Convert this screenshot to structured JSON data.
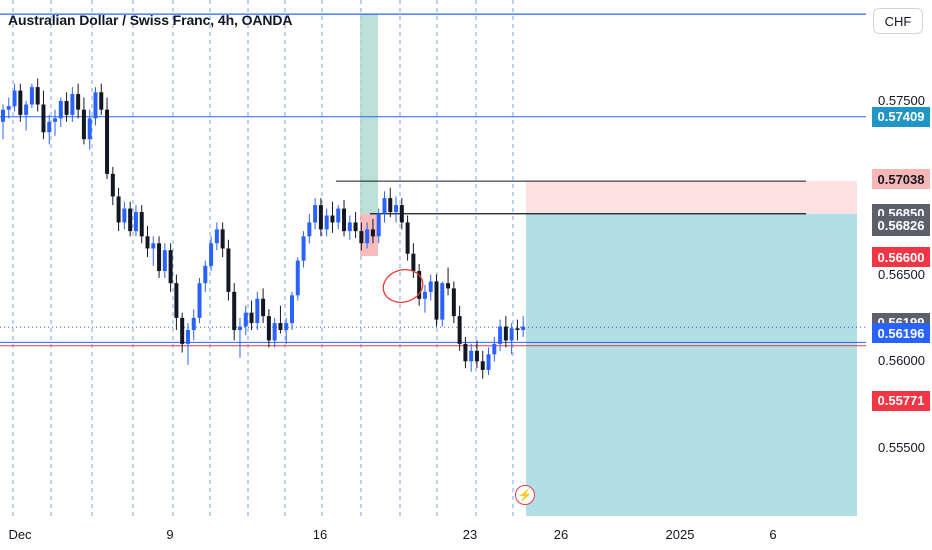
{
  "window": {
    "title": "Australian Dollar / Swiss Franc, 4h, OANDA",
    "currency_button": "CHF"
  },
  "colors": {
    "up_candle": "#2962ff",
    "down_candle": "#131722",
    "target_zone": "#b2dfe3",
    "stop_zone": "#fde0e0",
    "blue_line": "#2962ff",
    "red_line": "#e53935",
    "green_band": "#a5d6c8"
  },
  "price_axis": {
    "ticks": [
      "0.57500",
      "0.56500",
      "0.56000",
      "0.55500"
    ],
    "labels": [
      {
        "text": "0.57409",
        "price": 0.57409,
        "bg": "#2196c4",
        "fg": "#ffffff"
      },
      {
        "text": "0.57038",
        "price": 0.57038,
        "bg": "#f8b7b7",
        "fg": "#131722"
      },
      {
        "text": "0.56850",
        "price": 0.5685,
        "bg": "#5d606b",
        "fg": "#ffffff"
      },
      {
        "text": "0.56826",
        "price": 0.56826,
        "bg": "#5d606b",
        "fg": "#ffffff"
      },
      {
        "text": "0.56600",
        "price": 0.566,
        "bg": "#f23645",
        "fg": "#ffffff"
      },
      {
        "text": "0.56199",
        "price": 0.56199,
        "bg": "#5d606b",
        "fg": "#ffffff"
      },
      {
        "text": "0.56196",
        "price": 0.56196,
        "bg": "#2962ff",
        "fg": "#ffffff"
      },
      {
        "text": "0.55771",
        "price": 0.55771,
        "bg": "#f23645",
        "fg": "#ffffff"
      }
    ]
  },
  "time_axis": {
    "labels": [
      "Dec",
      "9",
      "16",
      "23",
      "26",
      "2025",
      "6"
    ]
  },
  "chart_data": {
    "type": "candlestick",
    "symbol": "AUDCHF",
    "timeframe": "4h",
    "ylim": [
      0.5505,
      0.58
    ],
    "horizontal_lines": [
      {
        "price": 0.58,
        "color": "blue"
      },
      {
        "price": 0.57409,
        "color": "blue"
      },
      {
        "price": 0.56109,
        "color": "blue"
      },
      {
        "price": 0.56089,
        "color": "red"
      }
    ],
    "position": {
      "entry": 0.5685,
      "stop": 0.57038,
      "target": 0.551
    },
    "candles": [
      [
        0.5738,
        0.5748,
        0.5728,
        0.5745
      ],
      [
        0.5745,
        0.5752,
        0.574,
        0.5747
      ],
      [
        0.5747,
        0.576,
        0.5744,
        0.5756
      ],
      [
        0.5756,
        0.576,
        0.5738,
        0.5742
      ],
      [
        0.5742,
        0.575,
        0.5733,
        0.5748
      ],
      [
        0.5748,
        0.576,
        0.5746,
        0.5758
      ],
      [
        0.5758,
        0.5763,
        0.5744,
        0.5748
      ],
      [
        0.5748,
        0.5756,
        0.5728,
        0.5732
      ],
      [
        0.5732,
        0.5742,
        0.5725,
        0.5738
      ],
      [
        0.5738,
        0.5745,
        0.573,
        0.574
      ],
      [
        0.574,
        0.5752,
        0.5735,
        0.575
      ],
      [
        0.575,
        0.5755,
        0.5738,
        0.5742
      ],
      [
        0.5742,
        0.5758,
        0.5738,
        0.5754
      ],
      [
        0.5754,
        0.576,
        0.574,
        0.5745
      ],
      [
        0.5745,
        0.5752,
        0.5725,
        0.5728
      ],
      [
        0.5728,
        0.5745,
        0.5722,
        0.574
      ],
      [
        0.574,
        0.5758,
        0.5736,
        0.5755
      ],
      [
        0.5755,
        0.576,
        0.5742,
        0.5745
      ],
      [
        0.5745,
        0.5752,
        0.5705,
        0.5708
      ],
      [
        0.5708,
        0.5712,
        0.569,
        0.5695
      ],
      [
        0.5695,
        0.57,
        0.5675,
        0.568
      ],
      [
        0.568,
        0.5692,
        0.5676,
        0.5688
      ],
      [
        0.5688,
        0.5692,
        0.5672,
        0.5675
      ],
      [
        0.5675,
        0.569,
        0.5672,
        0.5686
      ],
      [
        0.5686,
        0.569,
        0.5668,
        0.5672
      ],
      [
        0.5672,
        0.5678,
        0.566,
        0.5665
      ],
      [
        0.5665,
        0.5672,
        0.5655,
        0.5668
      ],
      [
        0.5668,
        0.5672,
        0.5648,
        0.5652
      ],
      [
        0.5652,
        0.5668,
        0.5648,
        0.5664
      ],
      [
        0.5664,
        0.5668,
        0.564,
        0.5645
      ],
      [
        0.5645,
        0.565,
        0.5618,
        0.5625
      ],
      [
        0.5625,
        0.5628,
        0.5605,
        0.561
      ],
      [
        0.561,
        0.5622,
        0.5598,
        0.5618
      ],
      [
        0.5618,
        0.563,
        0.5612,
        0.5625
      ],
      [
        0.5625,
        0.5648,
        0.5622,
        0.5645
      ],
      [
        0.5645,
        0.5658,
        0.564,
        0.5655
      ],
      [
        0.5655,
        0.5672,
        0.5652,
        0.5668
      ],
      [
        0.5668,
        0.568,
        0.5664,
        0.5676
      ],
      [
        0.5676,
        0.568,
        0.566,
        0.5665
      ],
      [
        0.5665,
        0.567,
        0.5635,
        0.564
      ],
      [
        0.564,
        0.5645,
        0.5612,
        0.5618
      ],
      [
        0.5618,
        0.5625,
        0.5602,
        0.562
      ],
      [
        0.562,
        0.5632,
        0.5615,
        0.5628
      ],
      [
        0.5628,
        0.5635,
        0.5618,
        0.5622
      ],
      [
        0.5622,
        0.564,
        0.5618,
        0.5636
      ],
      [
        0.5636,
        0.5642,
        0.5622,
        0.5626
      ],
      [
        0.5626,
        0.563,
        0.5608,
        0.5612
      ],
      [
        0.5612,
        0.5625,
        0.5608,
        0.5622
      ],
      [
        0.5622,
        0.5632,
        0.5616,
        0.5618
      ],
      [
        0.5618,
        0.5625,
        0.561,
        0.5622
      ],
      [
        0.5622,
        0.564,
        0.5618,
        0.5638
      ],
      [
        0.5638,
        0.566,
        0.5635,
        0.5658
      ],
      [
        0.5658,
        0.5675,
        0.5654,
        0.5672
      ],
      [
        0.5672,
        0.5685,
        0.5668,
        0.568
      ],
      [
        0.568,
        0.5694,
        0.5676,
        0.569
      ],
      [
        0.569,
        0.5694,
        0.5672,
        0.5676
      ],
      [
        0.5676,
        0.5688,
        0.5672,
        0.5684
      ],
      [
        0.5684,
        0.5692,
        0.5674,
        0.568
      ],
      [
        0.568,
        0.569,
        0.5676,
        0.5688
      ],
      [
        0.5688,
        0.5693,
        0.5672,
        0.5675
      ],
      [
        0.5675,
        0.5684,
        0.567,
        0.568
      ],
      [
        0.568,
        0.5686,
        0.5671,
        0.5675
      ],
      [
        0.5675,
        0.568,
        0.5664,
        0.5668
      ],
      [
        0.5668,
        0.568,
        0.5665,
        0.5676
      ],
      [
        0.5676,
        0.5682,
        0.5668,
        0.5672
      ],
      [
        0.5672,
        0.5688,
        0.5668,
        0.5685
      ],
      [
        0.5685,
        0.5698,
        0.568,
        0.5694
      ],
      [
        0.5694,
        0.57,
        0.5683,
        0.5686
      ],
      [
        0.5686,
        0.5695,
        0.568,
        0.569
      ],
      [
        0.569,
        0.5694,
        0.5676,
        0.568
      ],
      [
        0.568,
        0.5684,
        0.5658,
        0.5662
      ],
      [
        0.5662,
        0.5668,
        0.5648,
        0.5652
      ],
      [
        0.5652,
        0.5656,
        0.5632,
        0.5636
      ],
      [
        0.5636,
        0.5644,
        0.5628,
        0.564
      ],
      [
        0.564,
        0.565,
        0.5635,
        0.5646
      ],
      [
        0.5646,
        0.565,
        0.562,
        0.5624
      ],
      [
        0.5624,
        0.5646,
        0.562,
        0.5645
      ],
      [
        0.5645,
        0.5654,
        0.5638,
        0.5642
      ],
      [
        0.5642,
        0.5646,
        0.5622,
        0.5626
      ],
      [
        0.5626,
        0.5632,
        0.5606,
        0.561
      ],
      [
        0.561,
        0.5614,
        0.5596,
        0.56
      ],
      [
        0.56,
        0.561,
        0.5594,
        0.5606
      ],
      [
        0.5606,
        0.5612,
        0.5596,
        0.56
      ],
      [
        0.56,
        0.5606,
        0.559,
        0.5595
      ],
      [
        0.5595,
        0.5608,
        0.5592,
        0.5604
      ],
      [
        0.5604,
        0.5614,
        0.56,
        0.561
      ],
      [
        0.561,
        0.5624,
        0.5606,
        0.562
      ],
      [
        0.562,
        0.5626,
        0.5608,
        0.5612
      ],
      [
        0.5612,
        0.5622,
        0.5604,
        0.5619
      ],
      [
        0.5619,
        0.5624,
        0.5612,
        0.5618
      ],
      [
        0.5618,
        0.5626,
        0.5614,
        0.562
      ]
    ]
  }
}
